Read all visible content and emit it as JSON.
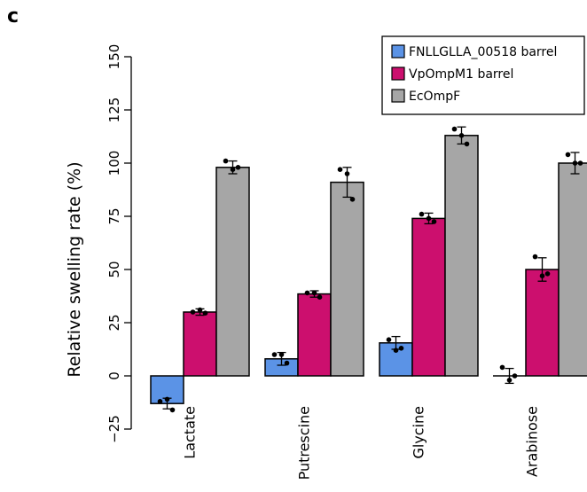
{
  "panel_label": "c",
  "colors": {
    "FNLLGLLA_00518 barrel": "#5b93e6",
    "VpOmpM1 barrel": "#cc0f6e",
    "EcOmpF": "#a6a6a6"
  },
  "chart_data": {
    "type": "bar",
    "ylabel": "Relative swelling rate (%)",
    "xlabel": "",
    "ylim": [
      -25,
      150
    ],
    "yticks": [
      -25,
      0,
      25,
      50,
      75,
      100,
      125,
      150
    ],
    "ytick_labels": [
      "−25",
      "0",
      "25",
      "50",
      "75",
      "100",
      "125",
      "150"
    ],
    "categories": [
      "Lactate",
      "Putrescine",
      "Glycine",
      "Arabinose"
    ],
    "legend_position": "top-right",
    "series": [
      {
        "name": "FNLLGLLA_00518 barrel",
        "values": [
          -13,
          8,
          15.5,
          0
        ],
        "errors": [
          2.5,
          3,
          3,
          3.5
        ],
        "points": [
          [
            -12,
            -11,
            -16
          ],
          [
            10,
            10,
            6
          ],
          [
            17,
            12,
            13
          ],
          [
            4,
            -2,
            0
          ]
        ]
      },
      {
        "name": "VpOmpM1 barrel",
        "values": [
          30,
          38.5,
          74,
          50
        ],
        "errors": [
          1.5,
          1.5,
          2.5,
          5.5
        ],
        "points": [
          [
            30,
            31,
            29.5
          ],
          [
            39,
            39,
            37
          ],
          [
            76,
            74,
            72.5
          ],
          [
            56,
            47,
            48
          ]
        ]
      },
      {
        "name": "EcOmpF",
        "values": [
          98,
          91,
          113,
          100
        ],
        "errors": [
          3,
          7,
          4,
          5
        ],
        "points": [
          [
            101,
            97,
            98
          ],
          [
            97,
            95,
            83
          ],
          [
            116,
            113,
            109
          ],
          [
            104,
            100,
            100
          ]
        ]
      }
    ]
  }
}
